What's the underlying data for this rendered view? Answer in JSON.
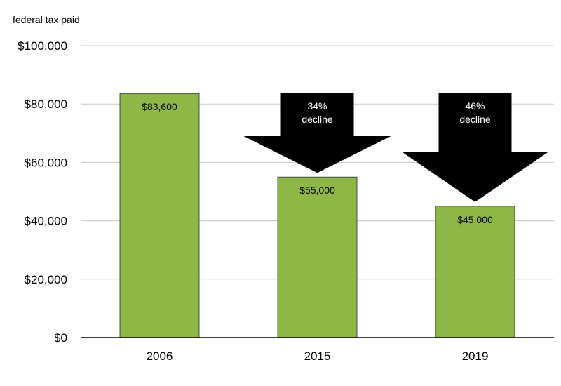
{
  "chart_data": {
    "type": "bar",
    "title": "",
    "ylabel": "federal tax paid",
    "xlabel": "",
    "categories": [
      "2006",
      "2015",
      "2019"
    ],
    "values": [
      83600,
      55000,
      45000
    ],
    "value_labels": [
      "$83,600",
      "$55,000",
      "$45,000"
    ],
    "ylim": [
      0,
      100000
    ],
    "yticks": [
      0,
      20000,
      40000,
      60000,
      80000,
      100000
    ],
    "ytick_labels": [
      "$0",
      "$20,000",
      "$40,000",
      "$60,000",
      "$80,000",
      "$100,000"
    ],
    "grid": true,
    "bar_color": "#8db848",
    "annotations": [
      {
        "category": "2015",
        "text_line1": "34%",
        "text_line2": "decline",
        "shape": "down-arrow",
        "color": "#000000",
        "text_color": "#ffffff"
      },
      {
        "category": "2019",
        "text_line1": "46%",
        "text_line2": "decline",
        "shape": "down-arrow",
        "color": "#000000",
        "text_color": "#ffffff"
      }
    ]
  }
}
